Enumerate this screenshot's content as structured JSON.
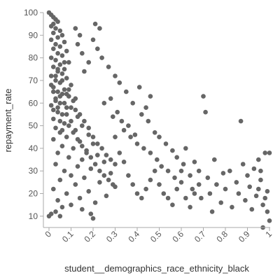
{
  "chart_data": {
    "type": "scatter",
    "title": "",
    "xlabel": "student__demographics_race_ethnicity_black",
    "ylabel": "repayment_rate",
    "xlim": [
      0,
      1
    ],
    "ylim": [
      5,
      100
    ],
    "x_ticks": [
      "0",
      "0.1",
      "0.2",
      "0.3",
      "0.4",
      "0.5",
      "0.6",
      "0.7",
      "0.8",
      "0.9",
      "1"
    ],
    "y_ticks": [
      "10",
      "20",
      "30",
      "40",
      "50",
      "60",
      "70",
      "80",
      "90",
      "100"
    ],
    "grid": false,
    "legend": "none",
    "marker_color": "#666666",
    "series": [
      {
        "values_note": "",
        "points": [
          [
            0.0,
            100
          ],
          [
            0.01,
            99
          ],
          [
            0.02,
            98
          ],
          [
            0.03,
            97
          ],
          [
            0.02,
            95
          ],
          [
            0.01,
            94
          ],
          [
            0.04,
            96
          ],
          [
            0.03,
            93
          ],
          [
            0.05,
            92
          ],
          [
            0.02,
            91
          ],
          [
            0.06,
            90
          ],
          [
            0.04,
            89
          ],
          [
            0.01,
            88
          ],
          [
            0.07,
            87
          ],
          [
            0.03,
            86
          ],
          [
            0.05,
            85
          ],
          [
            0.02,
            84
          ],
          [
            0.08,
            83
          ],
          [
            0.04,
            82
          ],
          [
            0.06,
            81
          ],
          [
            0.01,
            80
          ],
          [
            0.03,
            79
          ],
          [
            0.09,
            78
          ],
          [
            0.05,
            77
          ],
          [
            0.02,
            76
          ],
          [
            0.07,
            75
          ],
          [
            0.04,
            74
          ],
          [
            0.06,
            73
          ],
          [
            0.01,
            72
          ],
          [
            0.08,
            71
          ],
          [
            0.03,
            70
          ],
          [
            0.05,
            69
          ],
          [
            0.1,
            68
          ],
          [
            0.02,
            67
          ],
          [
            0.07,
            66
          ],
          [
            0.04,
            65
          ],
          [
            0.06,
            64
          ],
          [
            0.09,
            63
          ],
          [
            0.03,
            62
          ],
          [
            0.11,
            61
          ],
          [
            0.05,
            60
          ],
          [
            0.01,
            59
          ],
          [
            0.08,
            58
          ],
          [
            0.12,
            57
          ],
          [
            0.04,
            56
          ],
          [
            0.06,
            55
          ],
          [
            0.13,
            54
          ],
          [
            0.02,
            53
          ],
          [
            0.1,
            52
          ],
          [
            0.07,
            51
          ],
          [
            0.15,
            50
          ],
          [
            0.03,
            49
          ],
          [
            0.12,
            48
          ],
          [
            0.05,
            47
          ],
          [
            0.18,
            46
          ],
          [
            0.08,
            45
          ],
          [
            0.02,
            44
          ],
          [
            0.14,
            43
          ],
          [
            0.2,
            42
          ],
          [
            0.06,
            41
          ],
          [
            0.11,
            40
          ],
          [
            0.17,
            39
          ],
          [
            0.04,
            38
          ],
          [
            0.22,
            37
          ],
          [
            0.09,
            36
          ],
          [
            0.15,
            35
          ],
          [
            0.25,
            34
          ],
          [
            0.03,
            33
          ],
          [
            0.13,
            32
          ],
          [
            0.19,
            31
          ],
          [
            0.07,
            30
          ],
          [
            0.28,
            29
          ],
          [
            0.1,
            28
          ],
          [
            0.16,
            27
          ],
          [
            0.05,
            26
          ],
          [
            0.23,
            25
          ],
          [
            0.12,
            24
          ],
          [
            0.3,
            23
          ],
          [
            0.02,
            22
          ],
          [
            0.18,
            21
          ],
          [
            0.08,
            20
          ],
          [
            0.26,
            19
          ],
          [
            0.14,
            18
          ],
          [
            0.04,
            17
          ],
          [
            0.21,
            16
          ],
          [
            0.1,
            15
          ],
          [
            0.06,
            14
          ],
          [
            0.03,
            12
          ],
          [
            0.01,
            11
          ],
          [
            0.0,
            10
          ],
          [
            0.05,
            10
          ],
          [
            0.2,
            9
          ],
          [
            0.19,
            11
          ],
          [
            0.15,
            13
          ],
          [
            0.02,
            65
          ],
          [
            0.03,
            72
          ],
          [
            0.04,
            58
          ],
          [
            0.05,
            63
          ],
          [
            0.06,
            70
          ],
          [
            0.07,
            60
          ],
          [
            0.08,
            55
          ],
          [
            0.09,
            66
          ],
          [
            0.01,
            68
          ],
          [
            0.02,
            57
          ],
          [
            0.03,
            61
          ],
          [
            0.04,
            75
          ],
          [
            0.05,
            52
          ],
          [
            0.06,
            48
          ],
          [
            0.07,
            78
          ],
          [
            0.08,
            64
          ],
          [
            0.09,
            50
          ],
          [
            0.1,
            58
          ],
          [
            0.11,
            47
          ],
          [
            0.12,
            62
          ],
          [
            0.13,
            44
          ],
          [
            0.14,
            55
          ],
          [
            0.15,
            41
          ],
          [
            0.16,
            52
          ],
          [
            0.17,
            38
          ],
          [
            0.18,
            49
          ],
          [
            0.19,
            36
          ],
          [
            0.2,
            45
          ],
          [
            0.21,
            33
          ],
          [
            0.22,
            42
          ],
          [
            0.23,
            30
          ],
          [
            0.24,
            40
          ],
          [
            0.25,
            28
          ],
          [
            0.26,
            37
          ],
          [
            0.27,
            26
          ],
          [
            0.28,
            35
          ],
          [
            0.29,
            24
          ],
          [
            0.3,
            33
          ],
          [
            0.12,
            93
          ],
          [
            0.14,
            90
          ],
          [
            0.13,
            86
          ],
          [
            0.15,
            82
          ],
          [
            0.2,
            88
          ],
          [
            0.21,
            95
          ],
          [
            0.23,
            93
          ],
          [
            0.25,
            60
          ],
          [
            0.28,
            62
          ],
          [
            0.29,
            54
          ],
          [
            0.31,
            56
          ],
          [
            0.33,
            52
          ],
          [
            0.34,
            48
          ],
          [
            0.36,
            50
          ],
          [
            0.37,
            45
          ],
          [
            0.39,
            46
          ],
          [
            0.4,
            42
          ],
          [
            0.42,
            55
          ],
          [
            0.43,
            40
          ],
          [
            0.45,
            52
          ],
          [
            0.46,
            38
          ],
          [
            0.48,
            47
          ],
          [
            0.49,
            35
          ],
          [
            0.5,
            45
          ],
          [
            0.51,
            32
          ],
          [
            0.53,
            42
          ],
          [
            0.54,
            30
          ],
          [
            0.56,
            39
          ],
          [
            0.57,
            27
          ],
          [
            0.58,
            36
          ],
          [
            0.6,
            25
          ],
          [
            0.61,
            33
          ],
          [
            0.62,
            40
          ],
          [
            0.64,
            28
          ],
          [
            0.65,
            22
          ],
          [
            0.66,
            34
          ],
          [
            0.68,
            30
          ],
          [
            0.69,
            18
          ],
          [
            0.7,
            63
          ],
          [
            0.71,
            56
          ],
          [
            0.72,
            27
          ],
          [
            0.73,
            20
          ],
          [
            0.74,
            12
          ],
          [
            0.75,
            35
          ],
          [
            0.76,
            24
          ],
          [
            0.78,
            16
          ],
          [
            0.79,
            29
          ],
          [
            0.8,
            22
          ],
          [
            0.82,
            30
          ],
          [
            0.83,
            14
          ],
          [
            0.85,
            25
          ],
          [
            0.86,
            20
          ],
          [
            0.87,
            52
          ],
          [
            0.88,
            33
          ],
          [
            0.89,
            17
          ],
          [
            0.9,
            28
          ],
          [
            0.91,
            23
          ],
          [
            0.92,
            13
          ],
          [
            0.93,
            31
          ],
          [
            0.94,
            19
          ],
          [
            0.95,
            35
          ],
          [
            0.96,
            26
          ],
          [
            0.97,
            15
          ],
          [
            0.98,
            38
          ],
          [
            0.99,
            21
          ],
          [
            1.0,
            8
          ],
          [
            0.99,
            12
          ],
          [
            0.98,
            18
          ],
          [
            0.97,
            5
          ],
          [
            0.96,
            30
          ],
          [
            0.95,
            22
          ],
          [
            1.0,
            38
          ],
          [
            0.44,
            58
          ],
          [
            0.46,
            63
          ],
          [
            0.41,
            67
          ],
          [
            0.38,
            60
          ],
          [
            0.35,
            65
          ],
          [
            0.32,
            69
          ],
          [
            0.3,
            72
          ],
          [
            0.27,
            76
          ],
          [
            0.24,
            80
          ],
          [
            0.22,
            84
          ],
          [
            0.18,
            78
          ],
          [
            0.16,
            74
          ],
          [
            0.3,
            45
          ],
          [
            0.32,
            38
          ],
          [
            0.34,
            34
          ],
          [
            0.36,
            28
          ],
          [
            0.38,
            24
          ],
          [
            0.4,
            20
          ],
          [
            0.42,
            18
          ],
          [
            0.44,
            22
          ],
          [
            0.46,
            26
          ],
          [
            0.48,
            30
          ],
          [
            0.5,
            24
          ],
          [
            0.52,
            20
          ],
          [
            0.54,
            18
          ],
          [
            0.56,
            15
          ],
          [
            0.58,
            22
          ],
          [
            0.6,
            30
          ],
          [
            0.62,
            18
          ],
          [
            0.64,
            14
          ],
          [
            0.66,
            20
          ],
          [
            0.68,
            24
          ]
        ]
      }
    ]
  }
}
